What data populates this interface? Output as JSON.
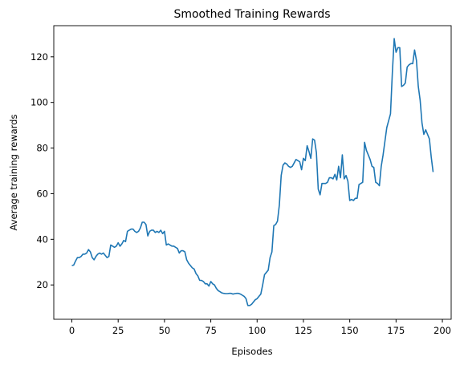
{
  "chart_data": {
    "type": "line",
    "title": "Smoothed Training Rewards",
    "x_label": "Episodes",
    "y_label": "Average training rewards",
    "x": [
      0,
      1,
      2,
      3,
      4,
      5,
      6,
      7,
      8,
      9,
      10,
      11,
      12,
      13,
      14,
      15,
      16,
      17,
      18,
      19,
      20,
      21,
      22,
      23,
      24,
      25,
      26,
      27,
      28,
      29,
      30,
      31,
      32,
      33,
      34,
      35,
      36,
      37,
      38,
      39,
      40,
      41,
      42,
      43,
      44,
      45,
      46,
      47,
      48,
      49,
      50,
      51,
      52,
      53,
      54,
      55,
      56,
      57,
      58,
      59,
      60,
      61,
      62,
      63,
      64,
      65,
      66,
      67,
      68,
      69,
      70,
      71,
      72,
      73,
      74,
      75,
      76,
      77,
      78,
      79,
      80,
      81,
      82,
      83,
      84,
      85,
      86,
      87,
      88,
      89,
      90,
      91,
      92,
      93,
      94,
      95,
      96,
      97,
      98,
      99,
      100,
      101,
      102,
      103,
      104,
      105,
      106,
      107,
      108,
      109,
      110,
      111,
      112,
      113,
      114,
      115,
      116,
      117,
      118,
      119,
      120,
      121,
      122,
      123,
      124,
      125,
      126,
      127,
      128,
      129,
      130,
      131,
      132,
      133,
      134,
      135,
      136,
      137,
      138,
      139,
      140,
      141,
      142,
      143,
      144,
      145,
      146,
      147,
      148,
      149,
      150,
      151,
      152,
      153,
      154,
      155,
      156,
      157,
      158,
      159,
      160,
      161,
      162,
      163,
      164,
      165,
      166,
      167,
      168,
      169,
      170,
      171,
      172,
      173,
      174,
      175,
      176,
      177,
      178,
      179,
      180,
      181,
      182,
      183,
      184,
      185,
      186,
      187,
      188,
      189,
      190,
      191,
      192,
      193,
      194,
      195
    ],
    "series": [
      {
        "name": "rewards",
        "color": "#1f77b4",
        "values": [
          28.5,
          28.7,
          30.5,
          32,
          32,
          32.5,
          33.5,
          33.5,
          34,
          35.5,
          34.5,
          32,
          31,
          32.5,
          33.5,
          34,
          33.5,
          34,
          33,
          32,
          32.5,
          37.5,
          37,
          36.5,
          37,
          38.5,
          37,
          38,
          39.5,
          39,
          43.5,
          44,
          44.5,
          44.5,
          43.5,
          43,
          43.5,
          45,
          47.5,
          47.5,
          46.5,
          41.5,
          43.5,
          44,
          44,
          43,
          43.5,
          43,
          44,
          42.5,
          43.5,
          37.5,
          38,
          37.5,
          37,
          37,
          36.5,
          36,
          34,
          35,
          35,
          34.5,
          31,
          29.5,
          28.5,
          27.5,
          27,
          25,
          24,
          22,
          22,
          21.5,
          20.5,
          20.5,
          19.5,
          21.5,
          20.5,
          20,
          18.5,
          17.5,
          17,
          16.5,
          16.3,
          16.2,
          16.2,
          16.3,
          16.3,
          16,
          16.2,
          16.3,
          16.3,
          16,
          15.5,
          15,
          14,
          11,
          11,
          11.5,
          12.5,
          13.5,
          14,
          15,
          16,
          20,
          24.5,
          25.5,
          26.5,
          32,
          34.5,
          46,
          46.5,
          48,
          55,
          68,
          72.5,
          73.5,
          73,
          72,
          71.5,
          72,
          73.5,
          75,
          74.5,
          74,
          70.5,
          75.5,
          74.5,
          81,
          78.5,
          75.5,
          84,
          83.5,
          78,
          62,
          59.5,
          64.5,
          64.5,
          64.5,
          65,
          67,
          67,
          66.5,
          68.5,
          66,
          72,
          67,
          77,
          66.5,
          68,
          65.5,
          57,
          57.5,
          57,
          58,
          58,
          64,
          64.5,
          65,
          82.5,
          79,
          77,
          75,
          72,
          71.5,
          65,
          64.5,
          63.5,
          72,
          77,
          83,
          89,
          92,
          95,
          113,
          128,
          122,
          124,
          124,
          107,
          107.5,
          108.5,
          115.5,
          116.5,
          117,
          117,
          123,
          118.5,
          107,
          101,
          91,
          86,
          88,
          86,
          84,
          76,
          69.5
        ]
      }
    ],
    "xlim": [
      -9.75,
      204.75
    ],
    "ylim": [
      4.95,
      133.65
    ],
    "xticks": [
      0,
      25,
      50,
      75,
      100,
      125,
      150,
      175,
      200
    ],
    "yticks": [
      20,
      40,
      60,
      80,
      100,
      120
    ],
    "grid": false
  }
}
